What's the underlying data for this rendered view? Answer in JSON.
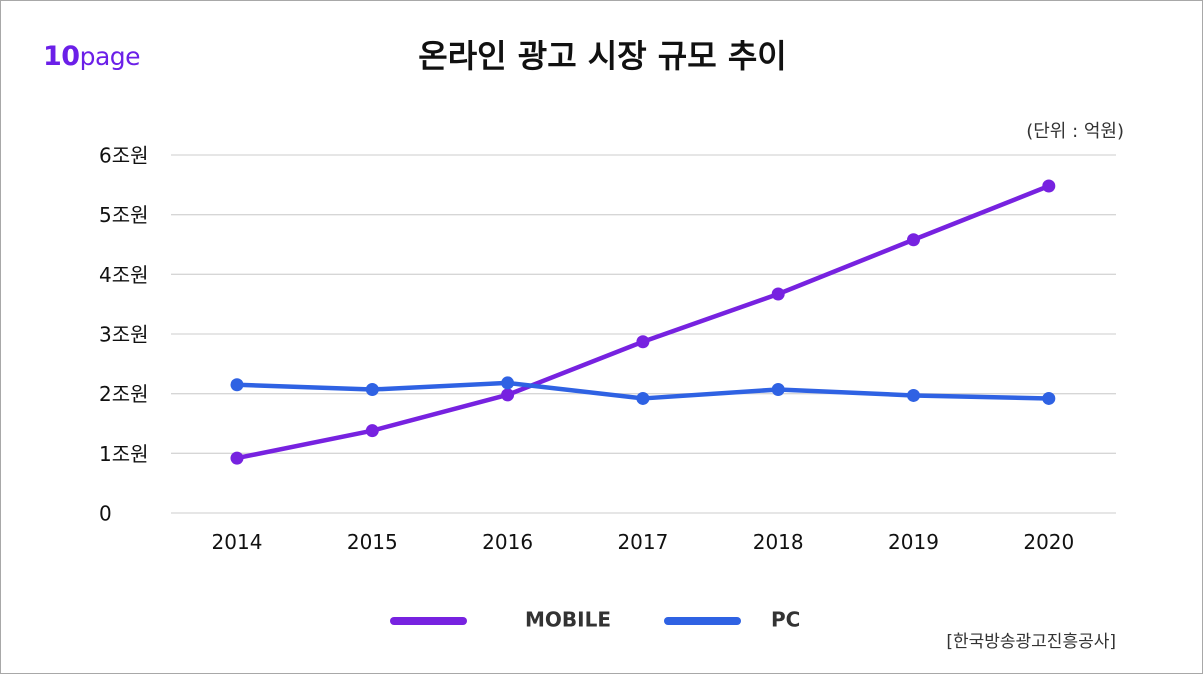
{
  "brand": {
    "logo_number": "10",
    "logo_word": "page"
  },
  "unit_label": "(단위 : 억원)",
  "source_label": "[한국방송광고진흥공사]",
  "colors": {
    "mobile": "#7722e0",
    "pc": "#2f62e3",
    "grid": "#d6d6d6"
  },
  "chart_data": {
    "type": "line",
    "title": "온라인 광고 시장 규모 추이",
    "categories": [
      "2014",
      "2015",
      "2016",
      "2017",
      "2018",
      "2019",
      "2020"
    ],
    "y_tick_values": [
      0,
      1,
      2,
      3,
      4,
      5,
      6
    ],
    "y_tick_labels": [
      "0",
      "1조원",
      "2조원",
      "3조원",
      "4조원",
      "5조원",
      "6조원"
    ],
    "ylim": [
      0,
      6
    ],
    "grid": true,
    "legend_position": "bottom-center",
    "series": [
      {
        "name": "MOBILE",
        "values": [
          0.92,
          1.38,
          1.98,
          2.87,
          3.67,
          4.58,
          5.48
        ]
      },
      {
        "name": "PC",
        "values": [
          2.15,
          2.07,
          2.18,
          1.92,
          2.07,
          1.97,
          1.92
        ]
      }
    ]
  }
}
